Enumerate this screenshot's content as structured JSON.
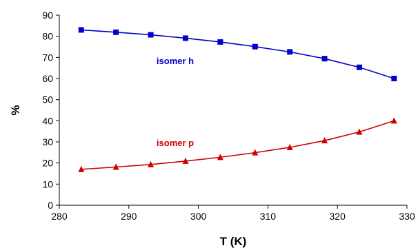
{
  "chart_data": {
    "type": "line",
    "xlabel": "T (K)",
    "ylabel": "%",
    "xlim": [
      280,
      330
    ],
    "ylim": [
      0,
      90
    ],
    "xticks": [
      280,
      290,
      300,
      310,
      320,
      330
    ],
    "yticks": [
      0,
      10,
      20,
      30,
      40,
      50,
      60,
      70,
      80,
      90
    ],
    "grid": false,
    "legend": "none",
    "x": [
      283.15,
      288.15,
      293.15,
      298.15,
      303.15,
      308.15,
      313.15,
      318.15,
      323.15,
      328.15
    ],
    "series": [
      {
        "name": "isomer h",
        "color": "#0000cc",
        "marker": "square",
        "values": [
          83.0,
          81.9,
          80.7,
          79.1,
          77.3,
          75.1,
          72.6,
          69.4,
          65.3,
          60.0
        ]
      },
      {
        "name": "isomer p",
        "color": "#cc0000",
        "marker": "triangle",
        "values": [
          17.0,
          18.1,
          19.3,
          20.9,
          22.7,
          24.9,
          27.4,
          30.6,
          34.7,
          40.0
        ]
      }
    ],
    "annotations": [
      {
        "text": "isomer h",
        "series": 0
      },
      {
        "text": "isomer p",
        "series": 1
      }
    ]
  }
}
